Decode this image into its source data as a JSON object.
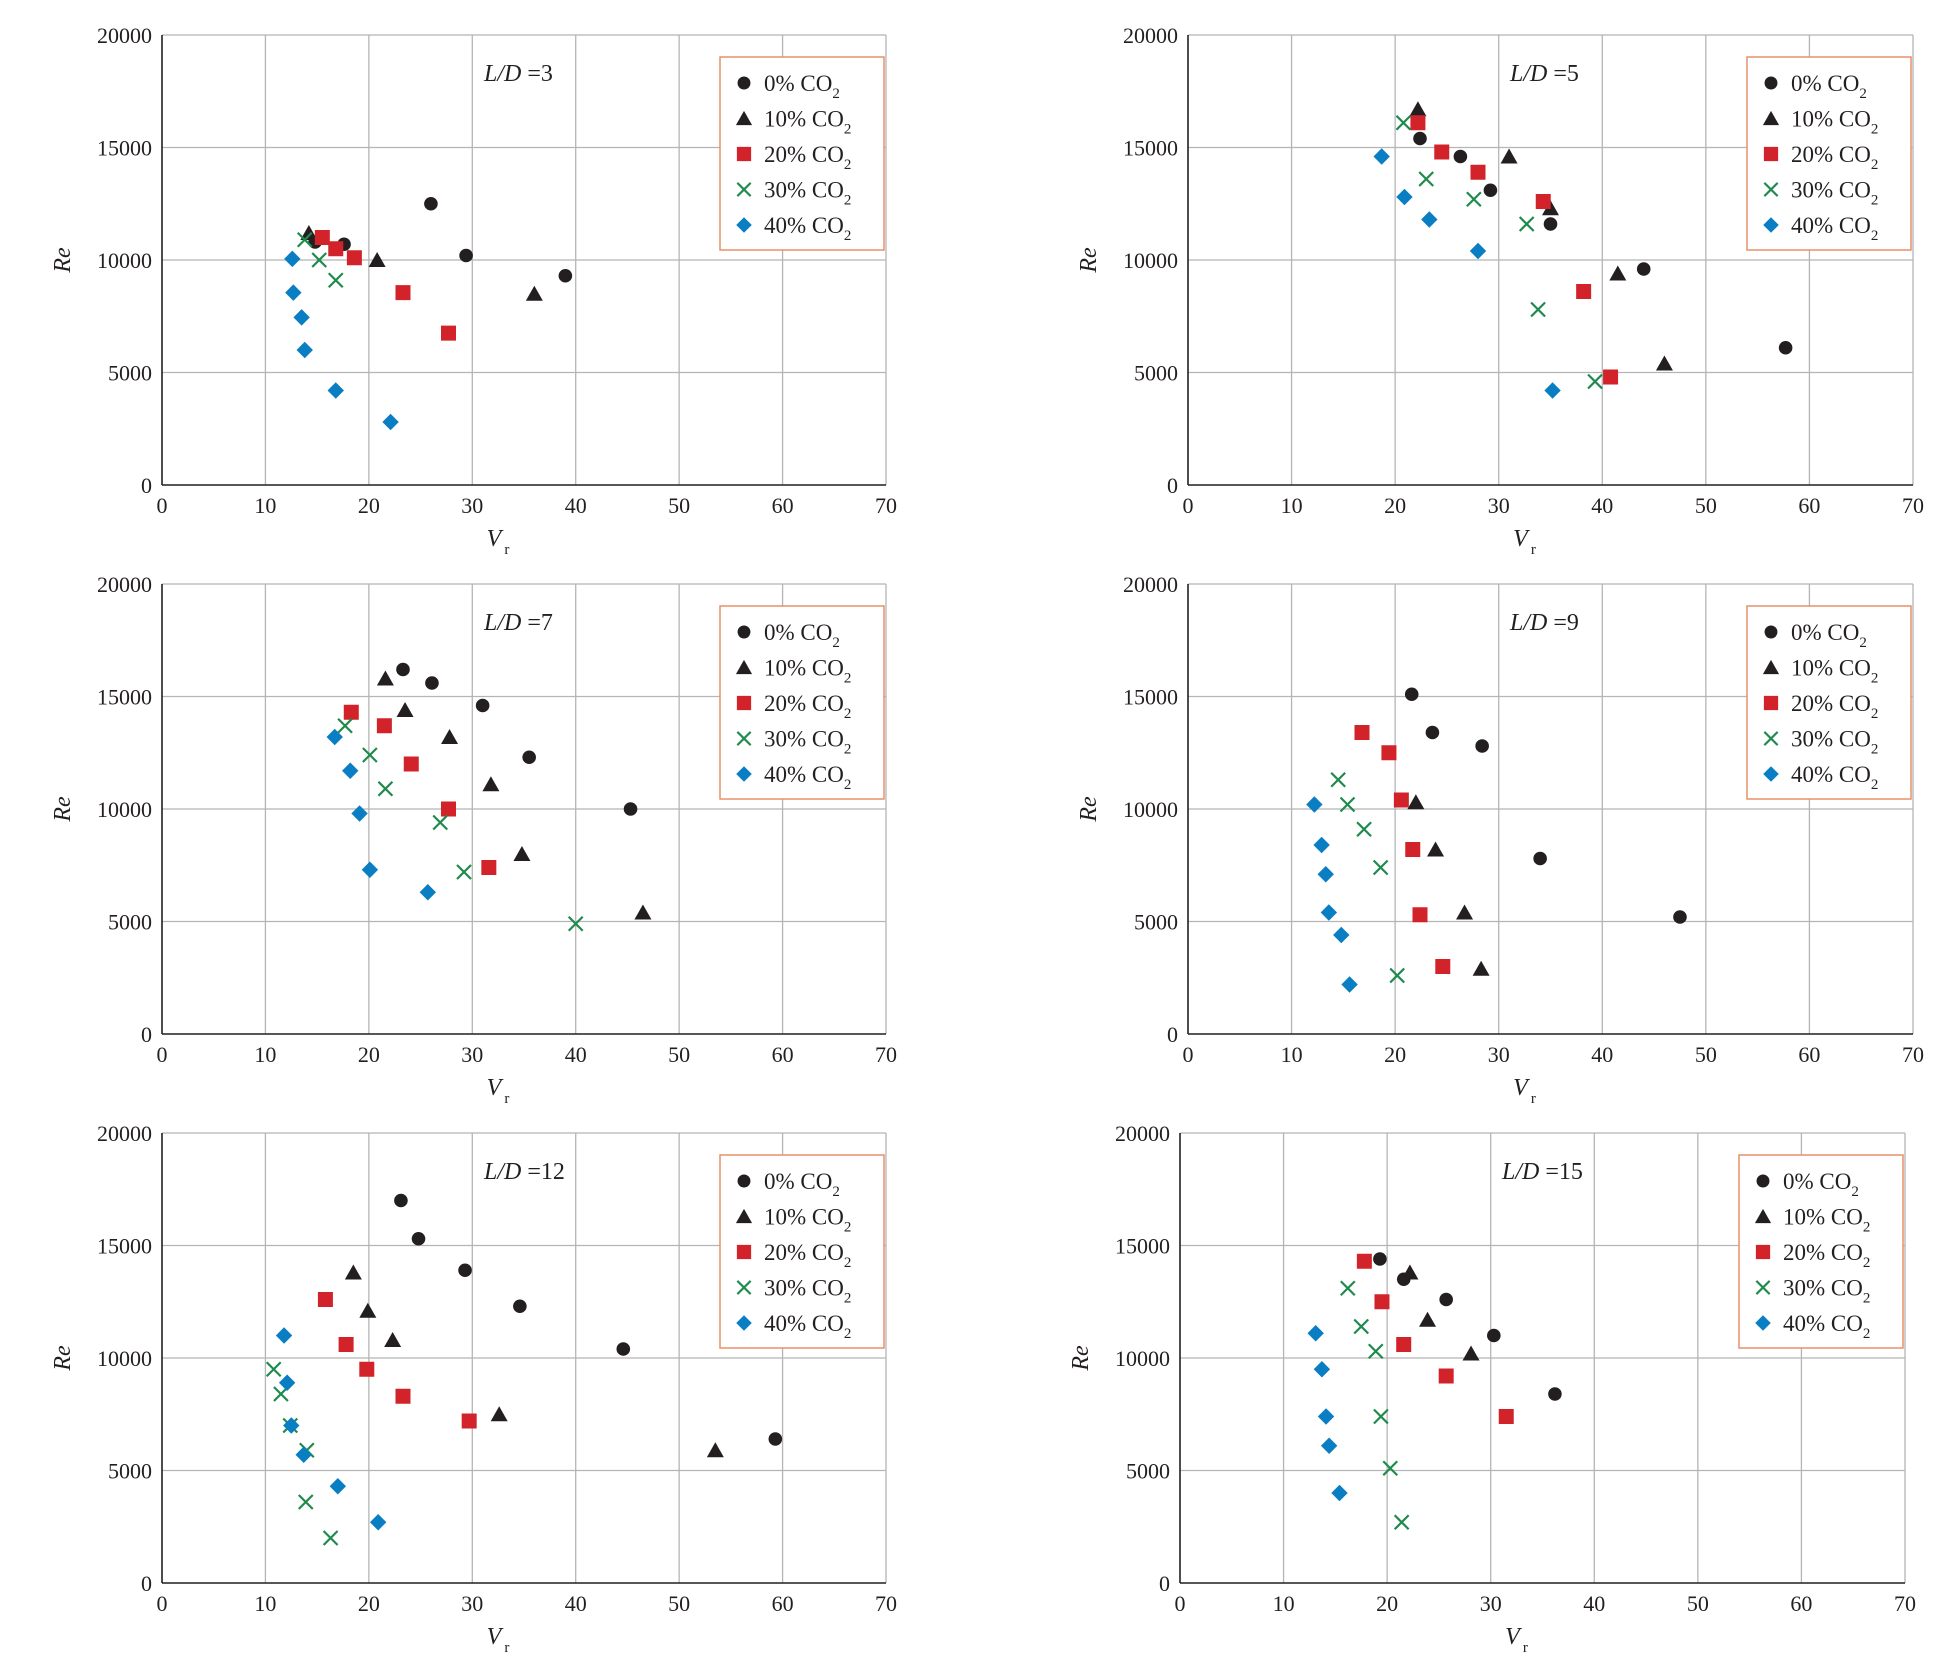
{
  "figure": {
    "panel_count": 6
  },
  "colors": {
    "s0": "#231f20",
    "s10": "#231f20",
    "s20": "#d2232a",
    "s30": "#1e8a4c",
    "s40": "#0a7ec2",
    "grid": "#b5b5b5",
    "legend_border": "#e8906a"
  },
  "legend": [
    {
      "prefix": "0% CO",
      "sub": "2",
      "marker": "circle",
      "color": "#231f20"
    },
    {
      "prefix": "10% CO",
      "sub": "2",
      "marker": "triangle",
      "color": "#231f20"
    },
    {
      "prefix": "20% CO",
      "sub": "2",
      "marker": "square",
      "color": "#d2232a"
    },
    {
      "prefix": "30%  CO",
      "sub": "2",
      "marker": "cross",
      "color": "#1e8a4c"
    },
    {
      "prefix": "40% CO",
      "sub": "2",
      "marker": "diamond",
      "color": "#0a7ec2"
    }
  ],
  "chart_data": [
    {
      "type": "scatter",
      "annotation": {
        "italic": "L/D",
        "value": " =3"
      },
      "xlabel": {
        "main": "V",
        "sub": "r"
      },
      "ylabel": "Re",
      "xlim": [
        0,
        70
      ],
      "ylim": [
        0,
        20000
      ],
      "xticks": [
        0,
        10,
        20,
        30,
        40,
        50,
        60,
        70
      ],
      "yticks": [
        0,
        5000,
        10000,
        15000,
        20000
      ],
      "xtick_labels": [
        "0",
        "10",
        "20",
        "30",
        "40",
        "50",
        "60",
        "70"
      ],
      "ytick_labels": [
        "0",
        "5000",
        "10000",
        "15000",
        "20000"
      ],
      "grid": true,
      "legend_position": "top-right",
      "series": [
        {
          "name": "0% CO2",
          "points": [
            [
              14.8,
              10800
            ],
            [
              17.6,
              10700
            ],
            [
              26,
              12500
            ],
            [
              29.4,
              10200
            ],
            [
              39,
              9300
            ]
          ]
        },
        {
          "name": "10% CO2",
          "points": [
            [
              14.2,
              11200
            ],
            [
              20.8,
              10000
            ],
            [
              36,
              8500
            ]
          ]
        },
        {
          "name": "20% CO2",
          "points": [
            [
              15.5,
              11000
            ],
            [
              16.8,
              10500
            ],
            [
              18.6,
              10100
            ],
            [
              23.3,
              8550
            ],
            [
              27.7,
              6750
            ]
          ]
        },
        {
          "name": "30% CO2",
          "points": [
            [
              13.8,
              10900
            ],
            [
              15.2,
              10000
            ],
            [
              16.8,
              9100
            ]
          ]
        },
        {
          "name": "40% CO2",
          "points": [
            [
              12.6,
              10050
            ],
            [
              12.7,
              8550
            ],
            [
              13.5,
              7450
            ],
            [
              13.8,
              6000
            ],
            [
              16.8,
              4200
            ],
            [
              22.1,
              2800
            ]
          ]
        }
      ]
    },
    {
      "type": "scatter",
      "annotation": {
        "italic": "L/D",
        "value": " =5"
      },
      "xlabel": {
        "main": "V",
        "sub": "r"
      },
      "ylabel": "Re",
      "xlim": [
        0,
        70
      ],
      "ylim": [
        0,
        20000
      ],
      "xticks": [
        0,
        10,
        20,
        30,
        40,
        50,
        60,
        70
      ],
      "yticks": [
        0,
        5000,
        10000,
        15000,
        20000
      ],
      "xtick_labels": [
        "0",
        "10",
        "20",
        "30",
        "40",
        "50",
        "60",
        "70"
      ],
      "ytick_labels": [
        "0",
        "5000",
        "10000",
        "15000",
        "20000"
      ],
      "grid": true,
      "legend_position": "top-right",
      "series": [
        {
          "name": "0% CO2",
          "points": [
            [
              22.4,
              15400
            ],
            [
              26.3,
              14600
            ],
            [
              29.2,
              13100
            ],
            [
              35,
              11600
            ],
            [
              44,
              9600
            ],
            [
              57.7,
              6100
            ]
          ]
        },
        {
          "name": "10% CO2",
          "points": [
            [
              22.2,
              16700
            ],
            [
              31,
              14600
            ],
            [
              35,
              12300
            ],
            [
              41.5,
              9400
            ],
            [
              46,
              5400
            ]
          ]
        },
        {
          "name": "20% CO2",
          "points": [
            [
              22.2,
              16100
            ],
            [
              24.5,
              14800
            ],
            [
              28,
              13900
            ],
            [
              34.3,
              12600
            ],
            [
              38.2,
              8600
            ],
            [
              40.8,
              4800
            ]
          ]
        },
        {
          "name": "30% CO2",
          "points": [
            [
              20.8,
              16100
            ],
            [
              23,
              13600
            ],
            [
              27.6,
              12700
            ],
            [
              32.7,
              11600
            ],
            [
              33.8,
              7800
            ],
            [
              39.3,
              4600
            ]
          ]
        },
        {
          "name": "40% CO2",
          "points": [
            [
              18.7,
              14600
            ],
            [
              20.9,
              12800
            ],
            [
              23.3,
              11800
            ],
            [
              28,
              10400
            ],
            [
              35.2,
              4200
            ]
          ]
        }
      ]
    },
    {
      "type": "scatter",
      "annotation": {
        "italic": "L/D",
        "value": " =7"
      },
      "xlabel": {
        "main": "V",
        "sub": "r"
      },
      "ylabel": "Re",
      "xlim": [
        0,
        70
      ],
      "ylim": [
        0,
        20000
      ],
      "xticks": [
        0,
        10,
        20,
        30,
        40,
        50,
        60,
        70
      ],
      "yticks": [
        0,
        5000,
        10000,
        15000,
        20000
      ],
      "xtick_labels": [
        "0",
        "10",
        "20",
        "30",
        "40",
        "50",
        "60",
        "70"
      ],
      "ytick_labels": [
        "0",
        "5000",
        "10000",
        "15000",
        "20000"
      ],
      "grid": true,
      "legend_position": "top-right",
      "series": [
        {
          "name": "0% CO2",
          "points": [
            [
              23.3,
              16200
            ],
            [
              26.1,
              15600
            ],
            [
              31,
              14600
            ],
            [
              35.5,
              12300
            ],
            [
              45.3,
              10000
            ]
          ]
        },
        {
          "name": "10% CO2",
          "points": [
            [
              21.6,
              15800
            ],
            [
              23.5,
              14400
            ],
            [
              27.8,
              13200
            ],
            [
              31.8,
              11100
            ],
            [
              34.8,
              8000
            ],
            [
              46.5,
              5400
            ]
          ]
        },
        {
          "name": "20% CO2",
          "points": [
            [
              18.3,
              14300
            ],
            [
              21.5,
              13700
            ],
            [
              24.1,
              12000
            ],
            [
              27.7,
              10000
            ],
            [
              31.6,
              7400
            ]
          ]
        },
        {
          "name": "30% CO2",
          "points": [
            [
              17.7,
              13700
            ],
            [
              20.1,
              12400
            ],
            [
              21.6,
              10900
            ],
            [
              26.9,
              9400
            ],
            [
              29.2,
              7200
            ],
            [
              40,
              4900
            ]
          ]
        },
        {
          "name": "40% CO2",
          "points": [
            [
              16.7,
              13200
            ],
            [
              18.2,
              11700
            ],
            [
              19.1,
              9800
            ],
            [
              20.1,
              7300
            ],
            [
              25.7,
              6300
            ]
          ]
        }
      ]
    },
    {
      "type": "scatter",
      "annotation": {
        "italic": "L/D",
        "value": " =9"
      },
      "xlabel": {
        "main": "V",
        "sub": "r"
      },
      "ylabel": "Re",
      "xlim": [
        0,
        70
      ],
      "ylim": [
        0,
        20000
      ],
      "xticks": [
        0,
        10,
        20,
        30,
        40,
        50,
        60,
        70
      ],
      "yticks": [
        0,
        5000,
        10000,
        15000,
        20000
      ],
      "xtick_labels": [
        "0",
        "10",
        "20",
        "30",
        "40",
        "50",
        "60",
        "70"
      ],
      "ytick_labels": [
        "0",
        "5000",
        "10000",
        "15000",
        "20000"
      ],
      "grid": true,
      "legend_position": "top-right",
      "series": [
        {
          "name": "0% CO2",
          "points": [
            [
              21.6,
              15100
            ],
            [
              23.6,
              13400
            ],
            [
              28.4,
              12800
            ],
            [
              34,
              7800
            ],
            [
              47.5,
              5200
            ]
          ]
        },
        {
          "name": "10% CO2",
          "points": [
            [
              22,
              10300
            ],
            [
              23.9,
              8200
            ],
            [
              26.7,
              5400
            ],
            [
              28.3,
              2900
            ]
          ]
        },
        {
          "name": "20% CO2",
          "points": [
            [
              16.8,
              13400
            ],
            [
              19.4,
              12500
            ],
            [
              20.6,
              10400
            ],
            [
              21.7,
              8200
            ],
            [
              22.4,
              5300
            ],
            [
              24.6,
              3000
            ]
          ]
        },
        {
          "name": "30% CO2",
          "points": [
            [
              14.5,
              11300
            ],
            [
              15.4,
              10200
            ],
            [
              17,
              9100
            ],
            [
              18.6,
              7400
            ],
            [
              20.2,
              2600
            ]
          ]
        },
        {
          "name": "40% CO2",
          "points": [
            [
              12.2,
              10200
            ],
            [
              12.9,
              8400
            ],
            [
              13.3,
              7100
            ],
            [
              13.6,
              5400
            ],
            [
              14.8,
              4400
            ],
            [
              15.6,
              2200
            ]
          ]
        }
      ]
    },
    {
      "type": "scatter",
      "annotation": {
        "italic": "L/D",
        "value": " =12"
      },
      "xlabel": {
        "main": "V",
        "sub": "r"
      },
      "ylabel": "Re",
      "xlim": [
        0,
        70
      ],
      "ylim": [
        0,
        20000
      ],
      "xticks": [
        0,
        10,
        20,
        30,
        40,
        50,
        60,
        70
      ],
      "yticks": [
        0,
        5000,
        10000,
        15000,
        20000
      ],
      "xtick_labels": [
        "0",
        "10",
        "20",
        "30",
        "40",
        "50",
        "60",
        "70"
      ],
      "ytick_labels": [
        "0",
        "5000",
        "10000",
        "15000",
        "20000"
      ],
      "grid": true,
      "legend_position": "top-right",
      "series": [
        {
          "name": "0% CO2",
          "points": [
            [
              23.1,
              17000
            ],
            [
              24.8,
              15300
            ],
            [
              29.3,
              13900
            ],
            [
              34.6,
              12300
            ],
            [
              44.6,
              10400
            ],
            [
              59.3,
              6400
            ]
          ]
        },
        {
          "name": "10% CO2",
          "points": [
            [
              18.5,
              13800
            ],
            [
              19.9,
              12100
            ],
            [
              22.3,
              10800
            ],
            [
              32.6,
              7500
            ],
            [
              53.5,
              5900
            ]
          ]
        },
        {
          "name": "20% CO2",
          "points": [
            [
              15.8,
              12600
            ],
            [
              17.8,
              10600
            ],
            [
              19.8,
              9500
            ],
            [
              23.3,
              8300
            ],
            [
              29.7,
              7200
            ]
          ]
        },
        {
          "name": "30% CO2",
          "points": [
            [
              10.8,
              9500
            ],
            [
              11.5,
              8400
            ],
            [
              12.4,
              7000
            ],
            [
              14,
              5900
            ],
            [
              13.9,
              3600
            ],
            [
              16.3,
              2000
            ]
          ]
        },
        {
          "name": "40% CO2",
          "points": [
            [
              11.8,
              11000
            ],
            [
              12.1,
              8900
            ],
            [
              12.5,
              7000
            ],
            [
              13.7,
              5700
            ],
            [
              17,
              4300
            ],
            [
              20.9,
              2700
            ]
          ]
        }
      ]
    },
    {
      "type": "scatter",
      "annotation": {
        "italic": "L/D",
        "value": " =15"
      },
      "xlabel": {
        "main": "V",
        "sub": "r"
      },
      "ylabel": "Re",
      "xlim": [
        0,
        70
      ],
      "ylim": [
        0,
        20000
      ],
      "xticks": [
        0,
        10,
        20,
        30,
        40,
        50,
        60,
        70
      ],
      "yticks": [
        0,
        5000,
        10000,
        15000,
        20000
      ],
      "xtick_labels": [
        "0",
        "10",
        "20",
        "30",
        "40",
        "50",
        "60",
        "70"
      ],
      "ytick_labels": [
        "0",
        "5000",
        "10000",
        "15000",
        "20000"
      ],
      "grid": true,
      "legend_position": "top-right",
      "series": [
        {
          "name": "0% CO2",
          "points": [
            [
              19.3,
              14400
            ],
            [
              21.6,
              13500
            ],
            [
              25.7,
              12600
            ],
            [
              30.3,
              11000
            ],
            [
              36.2,
              8400
            ]
          ]
        },
        {
          "name": "10% CO2",
          "points": [
            [
              22.2,
              13800
            ],
            [
              23.9,
              11700
            ],
            [
              28.1,
              10200
            ]
          ]
        },
        {
          "name": "20% CO2",
          "points": [
            [
              17.8,
              14300
            ],
            [
              19.5,
              12500
            ],
            [
              21.6,
              10600
            ],
            [
              25.7,
              9200
            ],
            [
              31.5,
              7400
            ]
          ]
        },
        {
          "name": "30% CO2",
          "points": [
            [
              16.2,
              13100
            ],
            [
              17.5,
              11400
            ],
            [
              18.9,
              10300
            ],
            [
              19.4,
              7400
            ],
            [
              20.3,
              5100
            ],
            [
              21.4,
              2700
            ]
          ]
        },
        {
          "name": "40% CO2",
          "points": [
            [
              13.1,
              11100
            ],
            [
              13.7,
              9500
            ],
            [
              14.1,
              7400
            ],
            [
              14.4,
              6100
            ],
            [
              15.4,
              4000
            ]
          ]
        }
      ]
    }
  ]
}
